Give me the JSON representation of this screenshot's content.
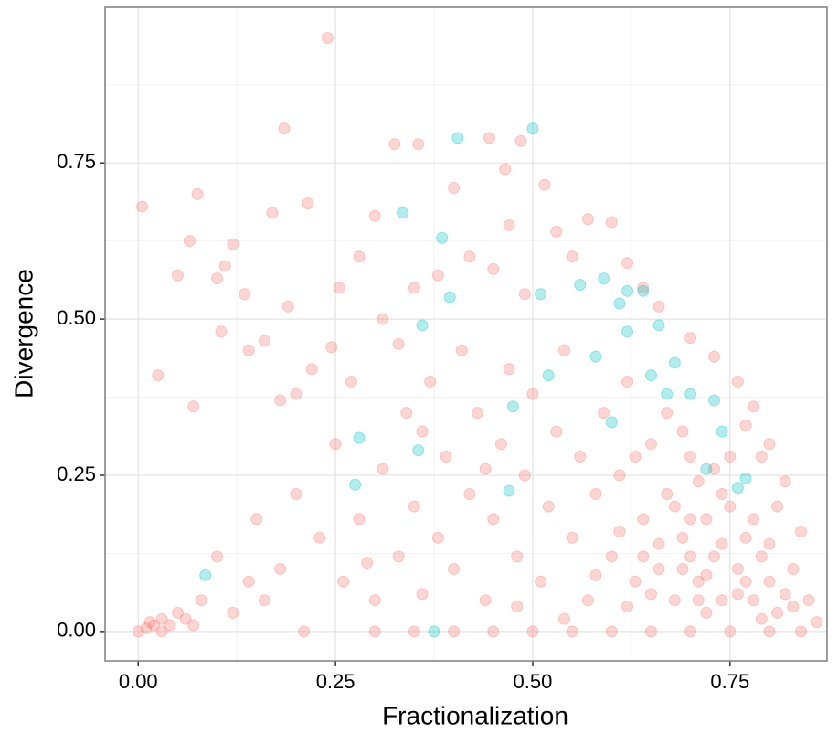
{
  "chart_data": {
    "type": "scatter",
    "x_label": "Fractionalization",
    "y_label": "Divergence",
    "xlim": [
      -0.042,
      0.873
    ],
    "ylim": [
      -0.047,
      0.999
    ],
    "xticks": [
      {
        "value": 0,
        "label": "0.00"
      },
      {
        "value": 0.25,
        "label": "0.25"
      },
      {
        "value": 0.5,
        "label": "0.50"
      },
      {
        "value": 0.75,
        "label": "0.75"
      }
    ],
    "yticks": [
      {
        "value": 0,
        "label": "0.00"
      },
      {
        "value": 0.25,
        "label": "0.25"
      },
      {
        "value": 0.5,
        "label": "0.50"
      },
      {
        "value": 0.75,
        "label": "0.75"
      }
    ],
    "x_minor_ticks": [
      0.125,
      0.375,
      0.625
    ],
    "y_minor_ticks": [
      0.125,
      0.375,
      0.625,
      0.875
    ],
    "grid": true,
    "series": [
      {
        "color": "#F8766D",
        "x": [
          0.005,
          0.075,
          0.24,
          0.185,
          0.325,
          0.355,
          0.445,
          0.485,
          0.465,
          0.515,
          0.065,
          0.12,
          0.17,
          0.215,
          0.3,
          0.4,
          0.05,
          0.1,
          0.11,
          0.135,
          0.025,
          0.07,
          0.105,
          0.14,
          0.16,
          0.19,
          0.18,
          0.2,
          0.22,
          0.245,
          0.255,
          0.28,
          0.31,
          0.33,
          0.35,
          0.38,
          0.42,
          0.45,
          0.47,
          0.49,
          0.53,
          0.55,
          0.57,
          0.6,
          0.62,
          0.64,
          0.66,
          0.7,
          0.73,
          0.76,
          0.78,
          0.8,
          0.82,
          0.84,
          0.85,
          0.86,
          0.83,
          0.81,
          0.79,
          0.77,
          0,
          0.01,
          0.02,
          0.03,
          0.04,
          0.05,
          0.06,
          0.03,
          0.015,
          0.07,
          0.08,
          0.1,
          0.12,
          0.14,
          0.15,
          0.16,
          0.18,
          0.2,
          0.21,
          0.23,
          0.25,
          0.26,
          0.28,
          0.3,
          0.31,
          0.33,
          0.34,
          0.35,
          0.36,
          0.37,
          0.38,
          0.39,
          0.4,
          0.41,
          0.42,
          0.43,
          0.44,
          0.45,
          0.46,
          0.47,
          0.48,
          0.49,
          0.5,
          0.51,
          0.52,
          0.53,
          0.54,
          0.55,
          0.56,
          0.57,
          0.58,
          0.59,
          0.6,
          0.61,
          0.62,
          0.63,
          0.64,
          0.65,
          0.66,
          0.67,
          0.68,
          0.69,
          0.7,
          0.71,
          0.72,
          0.73,
          0.74,
          0.75,
          0.76,
          0.77,
          0.78,
          0.79,
          0.8,
          0.81,
          0.82,
          0.65,
          0.7,
          0.72,
          0.74,
          0.76,
          0.68,
          0.71,
          0.73,
          0.75,
          0.69,
          0.67,
          0.63,
          0.61,
          0.66,
          0.78,
          0.3,
          0.35,
          0.4,
          0.45,
          0.5,
          0.55,
          0.6,
          0.65,
          0.7,
          0.75,
          0.8,
          0.84,
          0.62,
          0.58,
          0.54,
          0.48,
          0.44,
          0.36,
          0.27,
          0.29,
          0.8,
          0.72,
          0.74,
          0.77,
          0.7,
          0.83,
          0.79,
          0.71,
          0.64,
          0.69
        ],
        "values": [
          0.68,
          0.7,
          0.95,
          0.805,
          0.78,
          0.78,
          0.79,
          0.785,
          0.74,
          0.715,
          0.625,
          0.62,
          0.67,
          0.685,
          0.665,
          0.71,
          0.57,
          0.565,
          0.585,
          0.54,
          0.41,
          0.36,
          0.48,
          0.45,
          0.465,
          0.52,
          0.37,
          0.38,
          0.42,
          0.455,
          0.55,
          0.6,
          0.5,
          0.46,
          0.55,
          0.57,
          0.6,
          0.58,
          0.65,
          0.54,
          0.64,
          0.6,
          0.66,
          0.655,
          0.59,
          0.55,
          0.52,
          0.47,
          0.44,
          0.4,
          0.36,
          0.3,
          0.24,
          0.16,
          0.05,
          0.015,
          0.1,
          0.2,
          0.28,
          0.33,
          0,
          0.005,
          0.01,
          0.02,
          0.01,
          0.03,
          0.02,
          0,
          0.015,
          0.01,
          0.05,
          0.12,
          0.03,
          0.08,
          0.18,
          0.05,
          0.1,
          0.22,
          0,
          0.15,
          0.3,
          0.08,
          0.18,
          0.05,
          0.26,
          0.12,
          0.35,
          0.2,
          0.06,
          0.4,
          0.15,
          0.28,
          0.1,
          0.45,
          0.22,
          0.35,
          0.05,
          0.18,
          0.3,
          0.42,
          0.12,
          0.25,
          0.38,
          0.08,
          0.2,
          0.32,
          0.45,
          0.15,
          0.28,
          0.05,
          0.22,
          0.35,
          0.12,
          0.25,
          0.4,
          0.08,
          0.18,
          0.3,
          0.1,
          0.22,
          0.05,
          0.15,
          0.28,
          0.08,
          0.18,
          0.12,
          0.05,
          0.2,
          0.1,
          0.15,
          0.05,
          0.12,
          0.08,
          0.03,
          0.06,
          0.06,
          0.12,
          0.03,
          0.14,
          0.06,
          0.2,
          0.24,
          0.26,
          0.28,
          0.32,
          0.35,
          0.28,
          0.16,
          0.14,
          0.18,
          0,
          0,
          0,
          0,
          0,
          0,
          0,
          0,
          0,
          0,
          0,
          0,
          0.04,
          0.09,
          0.02,
          0.04,
          0.26,
          0.32,
          0.4,
          0.11,
          0.14,
          0.09,
          0.22,
          0.08,
          0.18,
          0.04,
          0.02,
          0.05,
          0.12,
          0.1
        ]
      },
      {
        "color": "#00BFC4",
        "x": [
          0.5,
          0.405,
          0.335,
          0.385,
          0.395,
          0.36,
          0.085,
          0.28,
          0.275,
          0.355,
          0.375,
          0.475,
          0.47,
          0.51,
          0.52,
          0.56,
          0.59,
          0.62,
          0.64,
          0.66,
          0.68,
          0.7,
          0.74,
          0.77,
          0.76,
          0.72,
          0.6,
          0.73,
          0.65,
          0.61,
          0.58,
          0.67,
          0.62
        ],
        "values": [
          0.805,
          0.79,
          0.67,
          0.63,
          0.535,
          0.49,
          0.09,
          0.31,
          0.235,
          0.29,
          0,
          0.36,
          0.225,
          0.54,
          0.41,
          0.555,
          0.565,
          0.545,
          0.545,
          0.49,
          0.43,
          0.38,
          0.32,
          0.245,
          0.23,
          0.26,
          0.335,
          0.37,
          0.41,
          0.525,
          0.44,
          0.38,
          0.48
        ]
      }
    ]
  }
}
